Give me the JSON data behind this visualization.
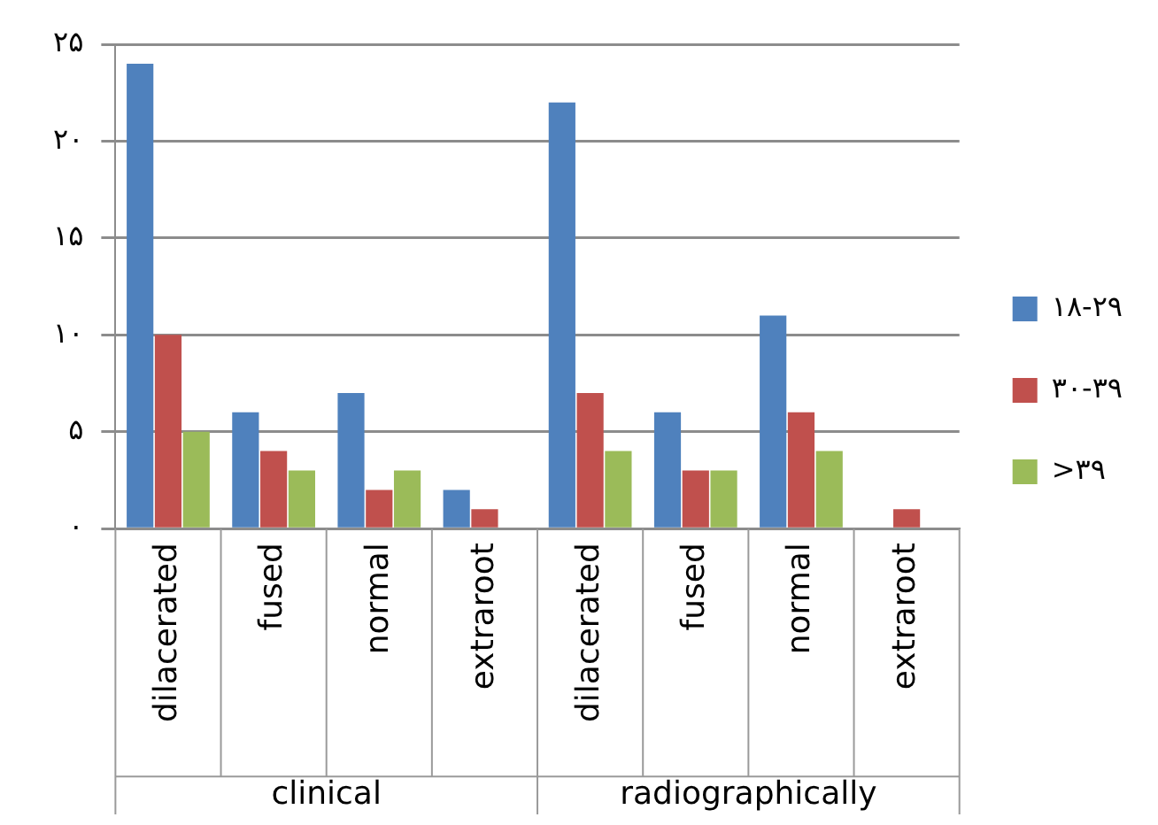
{
  "chart_data": {
    "type": "bar",
    "categories": [
      "dilacerated",
      "fused",
      "normal",
      "extraroot",
      "dilacerated",
      "fused",
      "normal",
      "extraroot"
    ],
    "series": [
      {
        "name": "۱۸-۲۹",
        "color": "#4f81bd",
        "values": [
          24,
          6,
          7,
          2,
          22,
          6,
          11,
          0
        ]
      },
      {
        "name": "۳۰-۳۹",
        "color": "#c0504d",
        "values": [
          10,
          4,
          2,
          1,
          7,
          3,
          6,
          1
        ]
      },
      {
        "name": ">۳۹",
        "color": "#9bbb59",
        "values": [
          5,
          3,
          3,
          0,
          4,
          3,
          4,
          0
        ]
      }
    ],
    "ylim": [
      0,
      25
    ],
    "yticks": [
      {
        "value": 0,
        "label": "۰"
      },
      {
        "value": 5,
        "label": "۵"
      },
      {
        "value": 10,
        "label": "۱۰"
      },
      {
        "value": 15,
        "label": "۱۵"
      },
      {
        "value": 20,
        "label": "۲۰"
      },
      {
        "value": 25,
        "label": "۲۵"
      }
    ],
    "annotations": [
      "clinical",
      "radiographically"
    ],
    "grid": "y",
    "legend": "right"
  }
}
